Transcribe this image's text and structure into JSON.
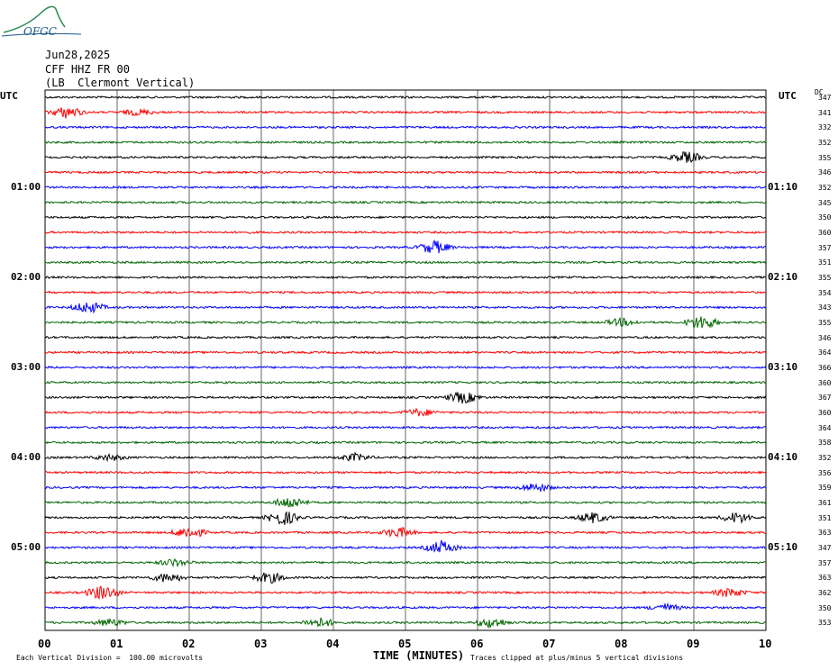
{
  "header": {
    "logo_text": "OFGC",
    "date": "Jun28,2025",
    "station": "CFF HHZ FR 00",
    "location": "(LB  Clermont Vertical)"
  },
  "left_axis_title": "UTC",
  "right_axis_title": "UTC",
  "dc_label": "DC",
  "footer": {
    "scale": "Each Vertical Division =  100.00 microvolts",
    "clip_note": "Traces clipped at plus/minus 5 vertical divisions"
  },
  "colors": {
    "trace_cycle": [
      "#000000",
      "#ff0000",
      "#0000ff",
      "#006600"
    ],
    "grid": "#000000",
    "logo": "#1a5a8a",
    "logo_mountain": "#2e8b57"
  },
  "chart_data": {
    "type": "line",
    "title": "",
    "xlabel": "TIME (MINUTES)",
    "xlim": [
      0,
      10
    ],
    "xticks": [
      "00",
      "01",
      "02",
      "03",
      "04",
      "05",
      "06",
      "07",
      "08",
      "09",
      "10"
    ],
    "left_time_labels": [
      "01:00",
      "02:00",
      "03:00",
      "04:00",
      "05:00"
    ],
    "right_time_labels": [
      "01:10",
      "02:10",
      "03:10",
      "04:10",
      "05:10"
    ],
    "dc_offsets": [
      347,
      341,
      332,
      352,
      355,
      346,
      352,
      345,
      350,
      360,
      357,
      351,
      355,
      354,
      343,
      355,
      346,
      364,
      366,
      360,
      367,
      360,
      364,
      358,
      352,
      356,
      359,
      361,
      351,
      363,
      347,
      357,
      363,
      362,
      350,
      353
    ],
    "events": [
      {
        "trace": 1,
        "minute": 0.3,
        "amp": 1.6
      },
      {
        "trace": 1,
        "minute": 1.3,
        "amp": 0.8
      },
      {
        "trace": 4,
        "minute": 8.9,
        "amp": 1.5
      },
      {
        "trace": 10,
        "minute": 5.4,
        "amp": 1.8
      },
      {
        "trace": 14,
        "minute": 0.6,
        "amp": 1.6
      },
      {
        "trace": 15,
        "minute": 8.0,
        "amp": 1.0
      },
      {
        "trace": 15,
        "minute": 9.1,
        "amp": 2.0
      },
      {
        "trace": 20,
        "minute": 5.8,
        "amp": 1.6
      },
      {
        "trace": 21,
        "minute": 5.2,
        "amp": 1.0
      },
      {
        "trace": 24,
        "minute": 4.3,
        "amp": 1.0
      },
      {
        "trace": 24,
        "minute": 0.9,
        "amp": 0.8
      },
      {
        "trace": 26,
        "minute": 6.8,
        "amp": 1.2
      },
      {
        "trace": 27,
        "minute": 3.4,
        "amp": 1.6
      },
      {
        "trace": 28,
        "minute": 3.3,
        "amp": 2.0
      },
      {
        "trace": 28,
        "minute": 7.6,
        "amp": 1.4
      },
      {
        "trace": 28,
        "minute": 9.6,
        "amp": 1.5
      },
      {
        "trace": 29,
        "minute": 2.0,
        "amp": 1.6
      },
      {
        "trace": 29,
        "minute": 4.9,
        "amp": 1.4
      },
      {
        "trace": 30,
        "minute": 5.5,
        "amp": 1.8
      },
      {
        "trace": 31,
        "minute": 1.8,
        "amp": 1.0
      },
      {
        "trace": 32,
        "minute": 1.7,
        "amp": 1.3
      },
      {
        "trace": 32,
        "minute": 3.1,
        "amp": 1.5
      },
      {
        "trace": 33,
        "minute": 0.8,
        "amp": 2.0
      },
      {
        "trace": 33,
        "minute": 9.5,
        "amp": 1.2
      },
      {
        "trace": 34,
        "minute": 8.6,
        "amp": 1.0
      },
      {
        "trace": 35,
        "minute": 3.8,
        "amp": 1.3
      },
      {
        "trace": 35,
        "minute": 6.2,
        "amp": 1.4
      },
      {
        "trace": 35,
        "minute": 0.9,
        "amp": 1.0
      }
    ]
  }
}
